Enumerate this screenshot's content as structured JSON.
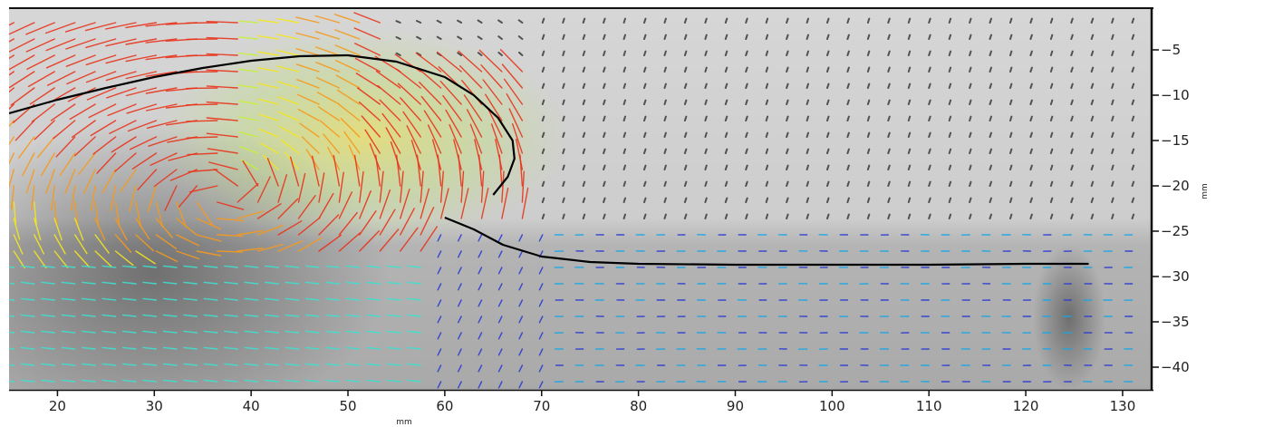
{
  "chart_data": {
    "type": "scatter",
    "subtype": "velocity-vector-field",
    "title": "",
    "xlabel": "mm",
    "ylabel": "mm",
    "xlim": [
      15,
      133
    ],
    "ylim": [
      -42.5,
      -0.5
    ],
    "x_ticks": [
      20,
      30,
      40,
      50,
      60,
      70,
      80,
      90,
      100,
      110,
      120,
      130
    ],
    "y_ticks": [
      -5,
      -10,
      -15,
      -20,
      -25,
      -30,
      -35,
      -40
    ],
    "y_axis_side": "right",
    "grid": false,
    "legend": "none",
    "background": "grayscale photograph of breaking wave",
    "colormap": [
      "#2b3bd1",
      "#1aa6e6",
      "#3fe0d0",
      "#c8f03c",
      "#f5e61e",
      "#f59a1e",
      "#e8341c"
    ],
    "annotations": [
      {
        "name": "free-surface-crest",
        "x": [
          15,
          20,
          25,
          30,
          35,
          40,
          45,
          50,
          55,
          60,
          63,
          65.5,
          67,
          67.2,
          66.5,
          65
        ],
        "y": [
          -12,
          -10.5,
          -9.2,
          -8,
          -7,
          -6.2,
          -5.7,
          -5.6,
          -6.3,
          -8,
          -10,
          -12.5,
          -15,
          -17,
          -19,
          -21
        ]
      },
      {
        "name": "free-surface-trough",
        "x": [
          60,
          63,
          66,
          70,
          75,
          80,
          90,
          100,
          110,
          120,
          126.5
        ],
        "y": [
          -23.5,
          -24.8,
          -26.5,
          -27.8,
          -28.4,
          -28.6,
          -28.7,
          -28.7,
          -28.7,
          -28.6,
          -28.6
        ]
      }
    ]
  }
}
